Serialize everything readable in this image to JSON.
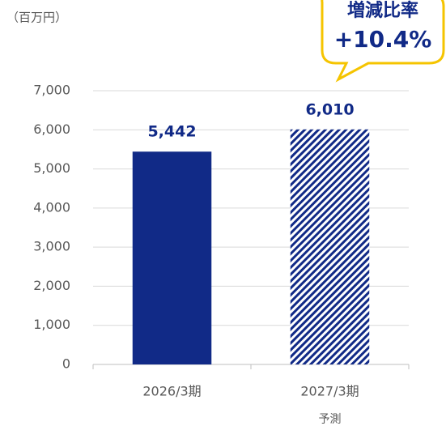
{
  "chart_data": {
    "type": "bar",
    "unit_label": "（百万円）",
    "annotation": [
      "増減比率",
      "+10.4%"
    ],
    "categories": [
      "2026/3期",
      "2027/3期"
    ],
    "category_notes": [
      null,
      "予測"
    ],
    "values": [
      5442,
      6010
    ],
    "value_labels": [
      "5,442",
      "6,010"
    ],
    "color": "#112a87",
    "hatched": [
      false,
      true
    ],
    "ylim": [
      0,
      7000
    ],
    "yticks": [
      0,
      {
        "value": 1000,
        "label": "1,000"
      },
      {
        "value": 2000,
        "label": "2,000"
      },
      {
        "value": 3000,
        "label": "3,000"
      },
      {
        "value": 4000,
        "label": "4,000"
      },
      {
        "value": 5000,
        "label": "5,000"
      },
      {
        "value": 6000,
        "label": "6,000"
      },
      {
        "value": 7000,
        "label": "7,000"
      }
    ],
    "grid": true
  }
}
